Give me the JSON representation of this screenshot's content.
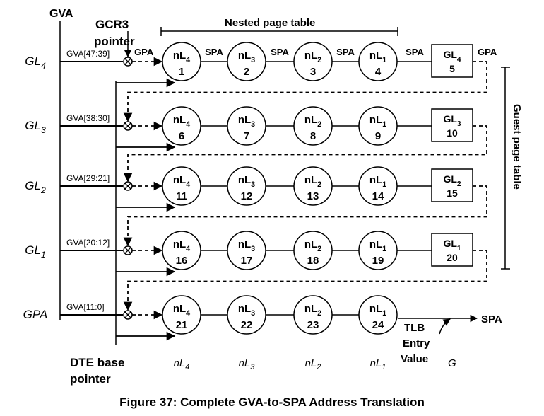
{
  "caption": "Figure 37: Complete GVA-to-SPA Address Translation",
  "labels": {
    "gva": "GVA",
    "gcr3_line1": "GCR3",
    "gcr3_line2": "pointer",
    "nested_page_table": "Nested page table",
    "guest_page_table": "Guest page table",
    "dte_line1": "DTE base",
    "dte_line2": "pointer",
    "tlb_line1": "TLB",
    "tlb_line2": "Entry",
    "tlb_line3": "Value",
    "spa_out": "SPA",
    "gpa": "GPA",
    "spa": "SPA"
  },
  "rows": [
    {
      "level": "GL",
      "sub": "4",
      "field": "GVA[47:39]",
      "nodes": [
        "1",
        "2",
        "3",
        "4"
      ],
      "guest_sub": "4",
      "guest_num": "5"
    },
    {
      "level": "GL",
      "sub": "3",
      "field": "GVA[38:30]",
      "nodes": [
        "6",
        "7",
        "8",
        "9"
      ],
      "guest_sub": "3",
      "guest_num": "10"
    },
    {
      "level": "GL",
      "sub": "2",
      "field": "GVA[29:21]",
      "nodes": [
        "11",
        "12",
        "13",
        "14"
      ],
      "guest_sub": "2",
      "guest_num": "15"
    },
    {
      "level": "GL",
      "sub": "1",
      "field": "GVA[20:12]",
      "nodes": [
        "16",
        "17",
        "18",
        "19"
      ],
      "guest_sub": "1",
      "guest_num": "20"
    },
    {
      "level": "GPA",
      "sub": "",
      "field": "GVA[11:0]",
      "nodes": [
        "21",
        "22",
        "23",
        "24"
      ],
      "guest_sub": "",
      "guest_num": ""
    }
  ],
  "nested_levels": [
    {
      "base": "nL",
      "sub": "4"
    },
    {
      "base": "nL",
      "sub": "3"
    },
    {
      "base": "nL",
      "sub": "2"
    },
    {
      "base": "nL",
      "sub": "1"
    }
  ],
  "guest_box_base": "GL",
  "bottom_labels": [
    {
      "base": "nL",
      "sub": "4"
    },
    {
      "base": "nL",
      "sub": "3"
    },
    {
      "base": "nL",
      "sub": "2"
    },
    {
      "base": "nL",
      "sub": "1"
    }
  ],
  "bottom_g": "G"
}
